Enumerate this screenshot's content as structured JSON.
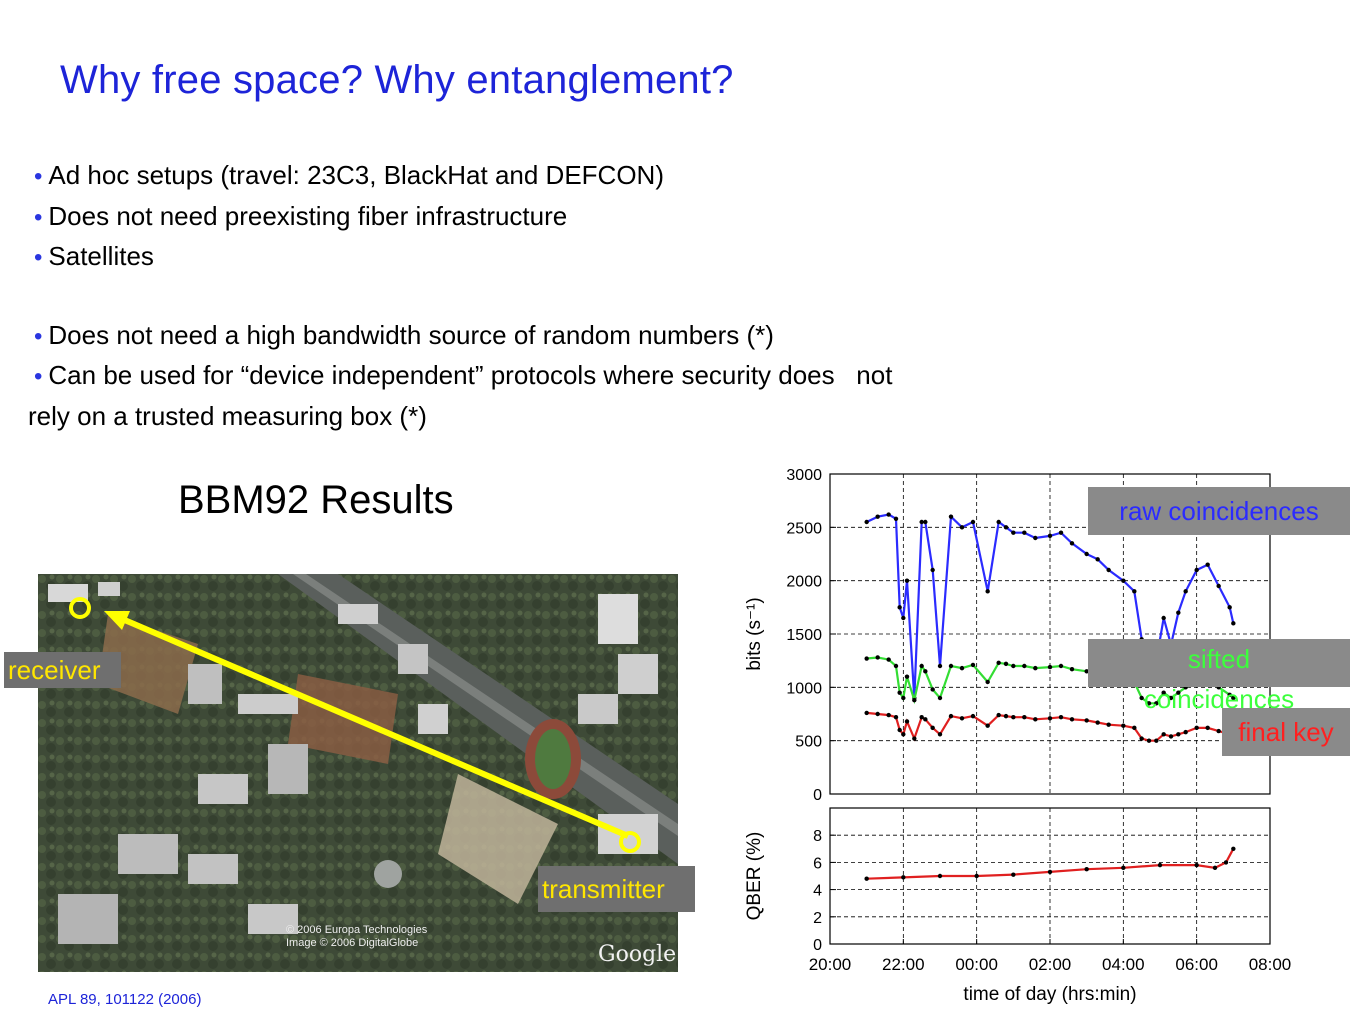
{
  "slide": {
    "title": "Why free space? Why entanglement?",
    "bullets": [
      "Ad hoc setups (travel: 23C3, BlackHat and DEFCON)",
      "Does not need preexisting fiber infrastructure",
      "Satellites",
      "Does not need a high bandwidth source of random numbers (*)",
      "Can be used for “device independent” protocols where security does   not"
    ],
    "bullet_continuation": "rely on a trusted measuring box (*)",
    "section_title": "BBM92 Results",
    "footnote": "APL 89, 101122 (2006)",
    "bullet_color": "#2a36e0",
    "title_color": "#1d24d8"
  },
  "map": {
    "receiver_label": "receiver",
    "transmitter_label": "transmitter",
    "copyright_line1": "© 2006 Europa Technologies",
    "copyright_line2": "Image © 2006 DigitalGlobe",
    "logo_text": "Google",
    "link_color": "#ffff00"
  },
  "legend": {
    "raw": "raw coincidences",
    "sifted_line1": "sifted",
    "sifted_line2": "coincidences",
    "final": "final key"
  },
  "chart_data": [
    {
      "type": "scatter",
      "title": "",
      "xlabel": "",
      "ylabel": "bits (s⁻¹)",
      "ylim": [
        0,
        3000
      ],
      "yticks": [
        0,
        500,
        1000,
        1500,
        2000,
        2500,
        3000
      ],
      "grid": true,
      "series": [
        {
          "name": "raw coincidences",
          "color": "#2b2bff",
          "x": [
            21.0,
            21.3,
            21.6,
            21.8,
            21.9,
            22.0,
            22.1,
            22.3,
            22.5,
            22.6,
            22.8,
            23.0,
            23.3,
            23.6,
            23.9,
            24.3,
            24.6,
            24.8,
            25.0,
            25.3,
            25.6,
            26.0,
            26.3,
            26.6,
            27.0,
            27.3,
            27.6,
            28.0,
            28.3,
            28.5,
            28.7,
            28.9,
            29.1,
            29.3,
            29.5,
            29.7,
            30.0,
            30.3,
            30.6,
            30.9,
            31.0
          ],
          "y": [
            2550,
            2600,
            2620,
            2580,
            1750,
            1650,
            2000,
            900,
            2550,
            2550,
            2100,
            1200,
            2600,
            2500,
            2550,
            1900,
            2550,
            2500,
            2450,
            2450,
            2400,
            2420,
            2450,
            2350,
            2250,
            2200,
            2100,
            2000,
            1900,
            1450,
            1200,
            1250,
            1650,
            1400,
            1700,
            1900,
            2100,
            2150,
            1950,
            1750,
            1600
          ]
        },
        {
          "name": "sifted coincidences",
          "color": "#33dd33",
          "x": [
            21.0,
            21.3,
            21.6,
            21.8,
            21.9,
            22.0,
            22.1,
            22.3,
            22.5,
            22.6,
            22.8,
            23.0,
            23.3,
            23.6,
            23.9,
            24.3,
            24.6,
            24.8,
            25.0,
            25.3,
            25.6,
            26.0,
            26.3,
            26.6,
            27.0,
            27.3,
            27.6,
            28.0,
            28.3,
            28.5,
            28.7,
            28.9,
            29.1,
            29.3,
            29.5,
            29.7,
            30.0,
            30.3,
            30.6,
            30.9,
            31.0
          ],
          "y": [
            1270,
            1280,
            1260,
            1200,
            950,
            900,
            1100,
            880,
            1200,
            1150,
            980,
            900,
            1200,
            1180,
            1210,
            1050,
            1230,
            1220,
            1200,
            1200,
            1180,
            1190,
            1200,
            1170,
            1150,
            1120,
            1100,
            1080,
            1050,
            900,
            850,
            850,
            950,
            900,
            950,
            1000,
            1050,
            1060,
            1000,
            930,
            900
          ]
        },
        {
          "name": "final key",
          "color": "#e02020",
          "x": [
            21.0,
            21.3,
            21.6,
            21.8,
            21.9,
            22.0,
            22.1,
            22.3,
            22.5,
            22.6,
            22.8,
            23.0,
            23.3,
            23.6,
            23.9,
            24.3,
            24.6,
            24.8,
            25.0,
            25.3,
            25.6,
            26.0,
            26.3,
            26.6,
            27.0,
            27.3,
            27.6,
            28.0,
            28.3,
            28.5,
            28.7,
            28.9,
            29.1,
            29.3,
            29.5,
            29.7,
            30.0,
            30.3,
            30.6,
            30.9,
            31.0
          ],
          "y": [
            760,
            750,
            740,
            720,
            600,
            560,
            680,
            520,
            720,
            700,
            620,
            560,
            730,
            710,
            730,
            640,
            740,
            730,
            720,
            720,
            700,
            710,
            720,
            700,
            690,
            670,
            650,
            640,
            620,
            520,
            500,
            500,
            560,
            540,
            560,
            580,
            620,
            620,
            590,
            560,
            540
          ]
        }
      ]
    },
    {
      "type": "scatter",
      "title": "",
      "xlabel": "time of day (hrs:min)",
      "ylabel": "QBER (%)",
      "ylim": [
        0,
        10
      ],
      "yticks": [
        0,
        2,
        4,
        6,
        8
      ],
      "xlim": [
        20,
        32
      ],
      "xtick_labels": [
        "20:00",
        "22:00",
        "00:00",
        "02:00",
        "04:00",
        "06:00",
        "08:00"
      ],
      "grid": true,
      "series": [
        {
          "name": "QBER",
          "color": "#e02020",
          "x": [
            21.0,
            22.0,
            23.0,
            24.0,
            25.0,
            26.0,
            27.0,
            28.0,
            29.0,
            30.0,
            30.5,
            30.8,
            31.0
          ],
          "y": [
            4.8,
            4.9,
            5.0,
            5.0,
            5.1,
            5.3,
            5.5,
            5.6,
            5.8,
            5.8,
            5.6,
            6.0,
            7.0
          ]
        }
      ]
    }
  ]
}
